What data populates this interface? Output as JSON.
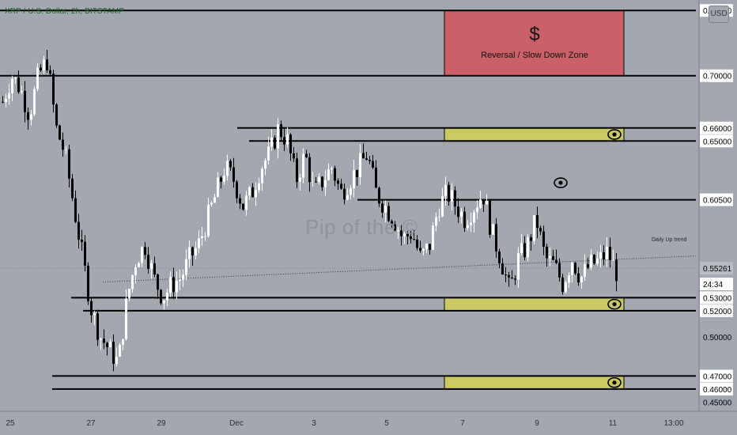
{
  "header": {
    "symbol_title": "XRP / U.S. Dollar, 2h, BITSTAMP",
    "currency_button": "USD"
  },
  "watermark": "Pip of the ©",
  "annotations": {
    "zone_symbol": "$",
    "zone_label": "Reversal / Slow Down Zone",
    "trend_label": "Daily Up trend",
    "countdown": "24:34"
  },
  "colors": {
    "background": "#a3a7b0",
    "resistance_zone": "#cc6068",
    "support_zone": "#cbc964",
    "lines": "#000000",
    "bull": "#ffffff",
    "bear": "#000000"
  },
  "chart_data": {
    "type": "candlestick",
    "symbol": "XRP / U.S. Dollar",
    "interval": "2h",
    "exchange": "BITSTAMP",
    "ylim": [
      0.443,
      0.758
    ],
    "y_tick_labels": [
      "0.75000",
      "0.70000",
      "0.66000",
      "0.65000",
      "0.60500",
      "0.55261",
      "0.53000",
      "0.52000",
      "0.50000",
      "0.47000",
      "0.46000",
      "0.45000"
    ],
    "x_tick_labels": [
      "25",
      "27",
      "29",
      "Dec",
      "3",
      "5",
      "7",
      "9",
      "11",
      "13:00"
    ],
    "current_price": 0.55261,
    "horizontal_levels": [
      0.75,
      0.7,
      0.66,
      0.65,
      0.605,
      0.53,
      0.52,
      0.47,
      0.46
    ],
    "zones": [
      {
        "label": "Reversal / Slow Down Zone",
        "from": 0.7,
        "to": 0.75,
        "color": "resistance"
      },
      {
        "from": 0.65,
        "to": 0.66,
        "color": "support",
        "icon": "eye-icon"
      },
      {
        "from": 0.52,
        "to": 0.53,
        "color": "support",
        "icon": "eye-icon"
      },
      {
        "from": 0.46,
        "to": 0.47,
        "color": "support",
        "icon": "eye-icon"
      }
    ],
    "trendline": {
      "label": "Daily Up trend",
      "start": [
        "Nov 28",
        0.542
      ],
      "end": [
        "Dec 11",
        0.56
      ]
    },
    "price_path": [
      [
        0.68,
        0.7
      ],
      [
        0.69,
        0.67
      ],
      [
        0.7,
        0.712
      ],
      [
        0.66,
        0.64
      ],
      [
        0.6,
        0.56
      ],
      [
        0.52,
        0.5
      ],
      [
        0.49,
        0.48
      ],
      [
        0.53,
        0.56
      ],
      [
        0.57,
        0.545
      ],
      [
        0.53,
        0.54
      ],
      [
        0.545,
        0.56
      ],
      [
        0.57,
        0.59
      ],
      [
        0.61,
        0.63
      ],
      [
        0.62,
        0.6
      ],
      [
        0.61,
        0.63
      ],
      [
        0.64,
        0.66
      ],
      [
        0.65,
        0.62
      ],
      [
        0.64,
        0.61
      ],
      [
        0.62,
        0.63
      ],
      [
        0.61,
        0.62
      ],
      [
        0.63,
        0.64
      ],
      [
        0.61,
        0.6
      ],
      [
        0.59,
        0.575
      ],
      [
        0.58,
        0.56
      ],
      [
        0.57,
        0.6
      ],
      [
        0.61,
        0.6
      ],
      [
        0.59,
        0.6
      ],
      [
        0.61,
        0.58
      ],
      [
        0.56,
        0.535
      ],
      [
        0.56,
        0.57
      ],
      [
        0.59,
        0.56
      ],
      [
        0.555,
        0.54
      ],
      [
        0.56,
        0.545
      ],
      [
        0.555,
        0.558
      ],
      [
        0.565,
        0.55
      ]
    ]
  }
}
